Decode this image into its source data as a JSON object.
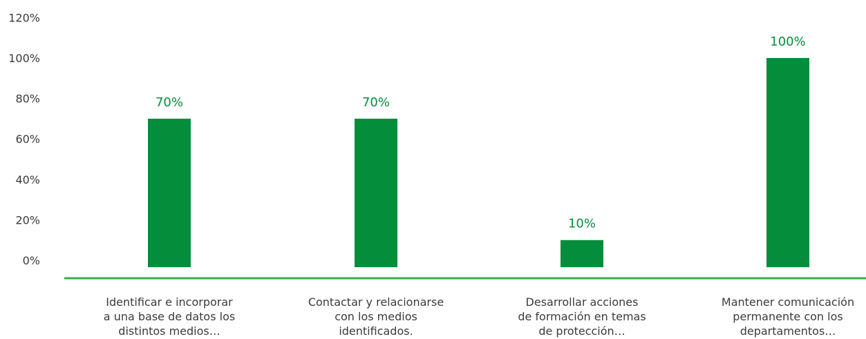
{
  "colors": {
    "bar": "#048e3c",
    "axis": "#3aaa4a",
    "label": "#048e3c",
    "text": "#3a3a3a"
  },
  "chart_data": {
    "type": "bar",
    "title": "",
    "xlabel": "",
    "ylabel": "",
    "ylim": [
      0,
      1.2
    ],
    "yticks": [
      "0%",
      "20%",
      "40%",
      "60%",
      "80%",
      "100%",
      "120%"
    ],
    "grid": false,
    "legend": "none",
    "categories": [
      [
        "Identificar e incorporar",
        "a una base de datos los",
        "distintos medios…"
      ],
      [
        "Contactar y relacionarse",
        "con los medios",
        "identificados."
      ],
      [
        "Desarrollar acciones",
        "de formación en temas",
        "de protección…"
      ],
      [
        "Mantener comunicación",
        "permanente con los",
        "departamentos…"
      ]
    ],
    "values": [
      0.7,
      0.7,
      0.1,
      1.0
    ],
    "data_labels": [
      "70%",
      "70%",
      "10%",
      "100%"
    ]
  }
}
